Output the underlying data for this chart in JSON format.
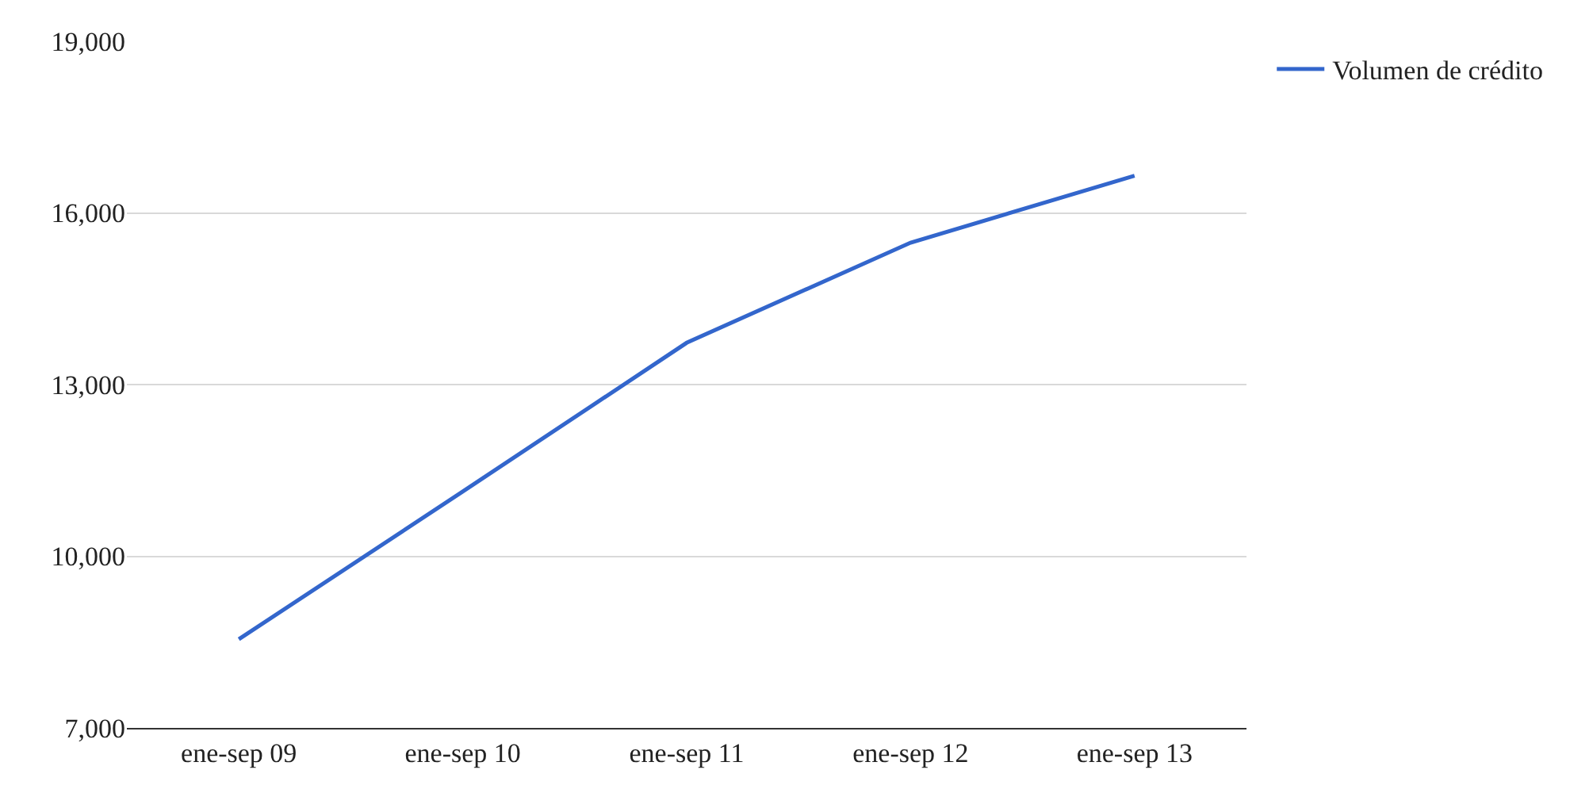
{
  "chart_data": {
    "type": "line",
    "categories": [
      "ene-sep 09",
      "ene-sep 10",
      "ene-sep 11",
      "ene-sep 12",
      "ene-sep 13"
    ],
    "series": [
      {
        "name": "Volumen de crédito",
        "color": "#3366cc",
        "values": [
          8550,
          11130,
          13730,
          15480,
          16650
        ]
      }
    ],
    "ylim": [
      7000,
      19000
    ],
    "yticks": [
      {
        "value": 7000,
        "label": "7,000"
      },
      {
        "value": 10000,
        "label": "10,000"
      },
      {
        "value": 13000,
        "label": "13,000"
      },
      {
        "value": 16000,
        "label": "16,000"
      },
      {
        "value": 19000,
        "label": "19,000"
      }
    ],
    "grid": "y",
    "legend": "top right",
    "marker": "none",
    "line_style": "solid"
  }
}
